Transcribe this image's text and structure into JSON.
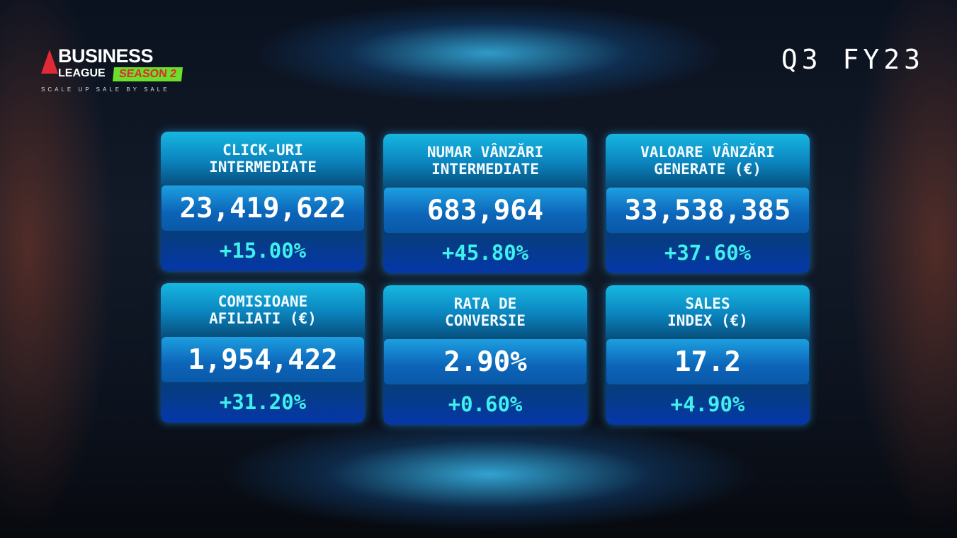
{
  "logo": {
    "line1": "BUSINESS",
    "line2": "LEAGUE",
    "badge": "SEASON 2",
    "tagline": "SCALE UP SALE BY SALE"
  },
  "period": "Q3 FY23",
  "colors": {
    "accent": "#3ff0ec",
    "card": "#0b86c0",
    "logo_red": "#e02a35",
    "logo_green": "#6ae02a"
  },
  "cards": [
    {
      "title": "CLICK-URI\nINTERMEDIATE",
      "value": "23,419,622",
      "change": "+15.00%"
    },
    {
      "title": "NUMAR VÂNZĂRI\nINTERMEDIATE",
      "value": "683,964",
      "change": "+45.80%"
    },
    {
      "title": "VALOARE VÂNZĂRI\nGENERATE (€)",
      "value": "33,538,385",
      "change": "+37.60%"
    },
    {
      "title": "COMISIOANE\nAFILIATI (€)",
      "value": "1,954,422",
      "change": "+31.20%"
    },
    {
      "title": "RATA DE\nCONVERSIE",
      "value": "2.90%",
      "change": "+0.60%"
    },
    {
      "title": "SALES\nINDEX (€)",
      "value": "17.2",
      "change": "+4.90%"
    }
  ]
}
